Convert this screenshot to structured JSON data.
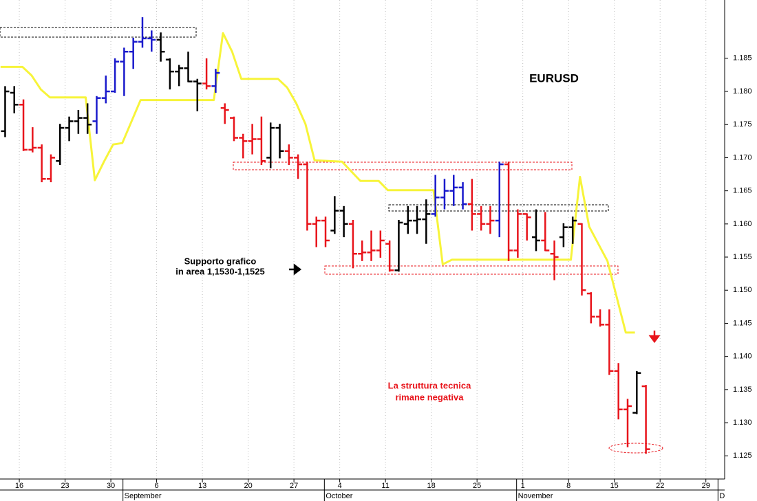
{
  "chart_data": {
    "type": "ohlc",
    "title": "EURUSD",
    "annotations": [
      "Supporto grafico",
      "in area 1,1530-1,1525",
      "La struttura tecnica",
      "rimane negativa"
    ],
    "x": [
      -2,
      -1,
      0,
      1,
      2,
      3,
      4,
      5,
      6,
      7,
      8,
      9,
      10,
      11,
      12,
      13,
      14,
      15,
      16,
      17,
      18,
      19,
      20,
      21,
      22,
      23,
      24,
      25,
      26,
      27,
      28,
      29,
      30,
      31,
      32,
      33,
      34,
      35,
      36,
      37,
      38,
      39,
      40,
      41,
      42,
      43,
      44,
      45,
      46,
      47,
      48,
      49,
      50,
      51,
      52,
      53,
      54,
      55,
      56,
      57,
      58,
      59,
      60,
      61,
      62,
      63,
      64,
      65,
      66,
      67,
      68
    ],
    "open": [
      1.174,
      1.1798,
      1.178,
      1.1712,
      1.1715,
      1.1668,
      1.1695,
      1.1745,
      1.1755,
      1.176,
      1.1755,
      1.179,
      1.18,
      1.1845,
      1.186,
      1.1875,
      1.188,
      1.1878,
      1.1848,
      1.183,
      1.1835,
      1.1815,
      1.1812,
      1.1808,
      1.1775,
      1.176,
      1.173,
      1.1725,
      1.1728,
      1.17,
      1.1745,
      1.171,
      1.17,
      1.169,
      1.16,
      1.1605,
      1.159,
      1.162,
      1.16,
      1.1555,
      1.1557,
      1.156,
      1.157,
      1.153,
      1.16,
      1.1605,
      1.1607,
      1.1615,
      1.164,
      1.165,
      1.1655,
      1.163,
      1.1615,
      1.16,
      1.1605,
      1.169,
      1.156,
      1.1615,
      1.158,
      1.1575,
      1.1555,
      1.158,
      1.1595,
      1.16,
      1.1495,
      1.146,
      1.1448,
      1.1378,
      1.132,
      1.1315,
      1.1355
    ],
    "high": [
      1.1808,
      1.1808,
      1.1788,
      1.1746,
      1.172,
      1.1705,
      1.1751,
      1.1762,
      1.1772,
      1.1782,
      1.1793,
      1.1824,
      1.185,
      1.1866,
      1.1881,
      1.1912,
      1.1892,
      1.1889,
      1.185,
      1.184,
      1.186,
      1.1819,
      1.185,
      1.1834,
      1.1782,
      1.1762,
      1.1736,
      1.1751,
      1.1762,
      1.1753,
      1.1751,
      1.172,
      1.1705,
      1.1694,
      1.1611,
      1.1611,
      1.1642,
      1.1627,
      1.1606,
      1.1575,
      1.159,
      1.159,
      1.1575,
      1.1606,
      1.1627,
      1.1627,
      1.1637,
      1.1674,
      1.1668,
      1.1674,
      1.1663,
      1.1668,
      1.1627,
      1.1627,
      1.1694,
      1.1694,
      1.1622,
      1.1616,
      1.1622,
      1.1618,
      1.1575,
      1.1601,
      1.1611,
      1.1601,
      1.1497,
      1.1471,
      1.1471,
      1.139,
      1.1336,
      1.1378,
      1.1357
    ],
    "low": [
      1.1731,
      1.1767,
      1.171,
      1.1708,
      1.1663,
      1.1663,
      1.1689,
      1.1725,
      1.1736,
      1.1736,
      1.1736,
      1.1782,
      1.1798,
      1.1793,
      1.1834,
      1.1866,
      1.186,
      1.1845,
      1.1803,
      1.1808,
      1.1814,
      1.177,
      1.1803,
      1.1798,
      1.1751,
      1.1725,
      1.1699,
      1.1705,
      1.1689,
      1.1684,
      1.1699,
      1.1689,
      1.1668,
      1.159,
      1.1565,
      1.1565,
      1.1585,
      1.158,
      1.1533,
      1.1544,
      1.1544,
      1.1549,
      1.1528,
      1.1528,
      1.1585,
      1.1585,
      1.157,
      1.1611,
      1.1622,
      1.1627,
      1.1622,
      1.159,
      1.159,
      1.1585,
      1.158,
      1.1544,
      1.1549,
      1.1575,
      1.1559,
      1.1559,
      1.1515,
      1.1565,
      1.157,
      1.1492,
      1.145,
      1.1445,
      1.1372,
      1.1305,
      1.1263,
      1.1313,
      1.1253
    ],
    "close": [
      1.18,
      1.178,
      1.1712,
      1.1715,
      1.1668,
      1.17,
      1.1745,
      1.1755,
      1.176,
      1.175,
      1.179,
      1.18,
      1.1845,
      1.186,
      1.1875,
      1.188,
      1.1878,
      1.186,
      1.183,
      1.1835,
      1.1815,
      1.1812,
      1.1808,
      1.1828,
      1.1772,
      1.173,
      1.1725,
      1.1728,
      1.1695,
      1.1745,
      1.171,
      1.17,
      1.169,
      1.16,
      1.1605,
      1.1575,
      1.162,
      1.16,
      1.1555,
      1.1557,
      1.156,
      1.1575,
      1.153,
      1.1602,
      1.1605,
      1.1607,
      1.1615,
      1.164,
      1.165,
      1.1655,
      1.163,
      1.1615,
      1.16,
      1.1605,
      1.169,
      1.156,
      1.1615,
      1.161,
      1.1575,
      1.156,
      1.155,
      1.1595,
      1.1605,
      1.15,
      1.146,
      1.1448,
      1.1378,
      1.132,
      1.1325,
      1.1375,
      1.126
    ],
    "bar_colors": [
      "#000000",
      "#000000",
      "#e8141b",
      "#e8141b",
      "#e8141b",
      "#e8141b",
      "#000000",
      "#000000",
      "#000000",
      "#000000",
      "#1a1acc",
      "#1a1acc",
      "#1a1acc",
      "#1a1acc",
      "#1a1acc",
      "#1a1acc",
      "#1a1acc",
      "#000000",
      "#000000",
      "#000000",
      "#000000",
      "#000000",
      "#e8141b",
      "#1a1acc",
      "#e8141b",
      "#e8141b",
      "#e8141b",
      "#e8141b",
      "#e8141b",
      "#000000",
      "#000000",
      "#e8141b",
      "#e8141b",
      "#e8141b",
      "#e8141b",
      "#e8141b",
      "#000000",
      "#000000",
      "#e8141b",
      "#e8141b",
      "#e8141b",
      "#e8141b",
      "#e8141b",
      "#000000",
      "#000000",
      "#000000",
      "#000000",
      "#1a1acc",
      "#1a1acc",
      "#1a1acc",
      "#1a1acc",
      "#e8141b",
      "#e8141b",
      "#e8141b",
      "#1a1acc",
      "#e8141b",
      "#e8141b",
      "#e8141b",
      "#000000",
      "#e8141b",
      "#e8141b",
      "#000000",
      "#000000",
      "#e8141b",
      "#e8141b",
      "#e8141b",
      "#e8141b",
      "#e8141b",
      "#e8141b",
      "#000000",
      "#e8141b"
    ],
    "indicator": {
      "color": "#f7f43a",
      "x": [
        -2.5,
        -0.1,
        0.9,
        1.9,
        2.9,
        6.8,
        7.8,
        8.8,
        9.8,
        10.8,
        12.8,
        20.8,
        21.8,
        22.8,
        23.8,
        27.8,
        28.8,
        29.8,
        30.8,
        31.8,
        34.8,
        36.8,
        38.8,
        39.8,
        44.8,
        45.8,
        46.8,
        59.8,
        60.8,
        61.8,
        63.8,
        65.8,
        66.8
      ],
      "values": [
        1.1837,
        1.1837,
        1.1824,
        1.1803,
        1.1791,
        1.1791,
        1.1666,
        1.1694,
        1.172,
        1.1722,
        1.1787,
        1.1787,
        1.1888,
        1.186,
        1.1819,
        1.1819,
        1.1806,
        1.1782,
        1.1751,
        1.1696,
        1.1694,
        1.1665,
        1.1665,
        1.1651,
        1.1651,
        1.1539,
        1.1546,
        1.1546,
        1.1671,
        1.1596,
        1.1544,
        1.1436,
        1.1436
      ]
    },
    "xlim": [
      -2.56,
      76.6
    ],
    "xticks": [
      {
        "value": 0,
        "label": "16"
      },
      {
        "value": 5,
        "label": "23"
      },
      {
        "value": 10,
        "label": "30"
      },
      {
        "value": 15,
        "label": "6"
      },
      {
        "value": 20,
        "label": "13"
      },
      {
        "value": 25,
        "label": "20"
      },
      {
        "value": 30,
        "label": "27"
      },
      {
        "value": 35,
        "label": "4"
      },
      {
        "value": 40,
        "label": "11"
      },
      {
        "value": 45,
        "label": "18"
      },
      {
        "value": 50,
        "label": "25"
      },
      {
        "value": 55,
        "label": "1"
      },
      {
        "value": 60,
        "label": "8"
      },
      {
        "value": 65,
        "label": "15"
      },
      {
        "value": 70,
        "label": "22"
      },
      {
        "value": 75,
        "label": "29"
      }
    ],
    "months": [
      {
        "value": 12,
        "label": "September"
      },
      {
        "value": 34,
        "label": "October"
      },
      {
        "value": 55,
        "label": "November"
      },
      {
        "value": 77,
        "label": "D"
      }
    ],
    "ylim": [
      1.1215,
      1.1938
    ],
    "yticks": [
      1.125,
      {
        "value": 1.13,
        "label": "1.130"
      },
      1.135,
      {
        "value": 1.14,
        "label": "1.140"
      },
      1.145,
      {
        "value": 1.15,
        "label": "1.150"
      },
      1.155,
      {
        "value": 1.16,
        "label": "1.160"
      },
      1.165,
      {
        "value": 1.17,
        "label": "1.170"
      },
      1.175,
      {
        "value": 1.18,
        "label": "1.180"
      },
      1.185
    ],
    "grid": true
  }
}
